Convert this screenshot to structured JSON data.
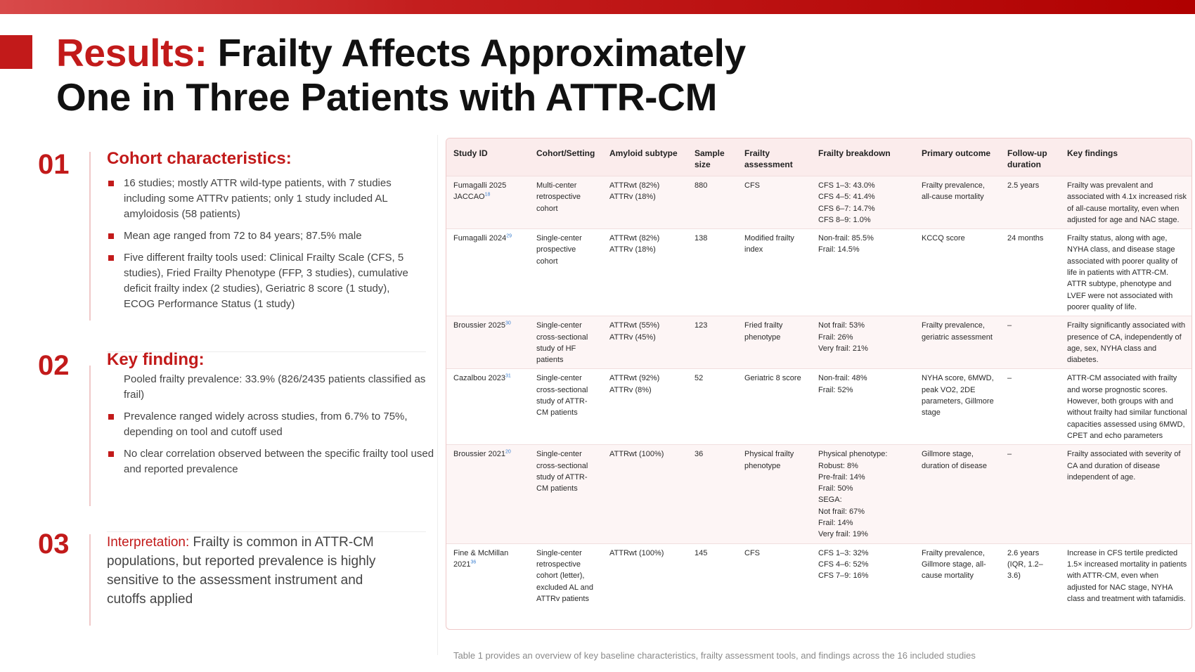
{
  "title": {
    "accent": "Results:",
    "line1_rest": " Frailty Affects Approximately",
    "line2": "One in Three Patients with ATTR-CM"
  },
  "sections": [
    {
      "number": "01",
      "heading": "Cohort characteristics:",
      "bullets": [
        "16 studies; mostly ATTR wild-type patients, with 7 studies including some ATTRv patients; only 1 study included AL amyloidosis (58 patients)",
        "Mean age ranged from 72 to 84 years; 87.5% male",
        "Five different frailty tools used: Clinical Frailty Scale (CFS, 5 studies), Fried Frailty Phenotype (FFP, 3 studies), cumulative deficit frailty index (2 studies), Geriatric 8 score (1 study), ECOG Performance Status (1 study)"
      ]
    },
    {
      "number": "02",
      "heading": "Key finding:",
      "lead": "Pooled frailty prevalence: 33.9% (826/2435 patients classified as frail)",
      "bullets": [
        "Prevalence ranged widely across studies, from 6.7% to 75%, depending on tool and cutoff used",
        "No clear correlation observed between the specific frailty tool used and reported prevalence"
      ]
    },
    {
      "number": "03",
      "label": "Interpretation:",
      "text": " Frailty is common in ATTR-CM populations, but reported prevalence is highly sensitive to the assessment instrument and cutoffs applied"
    }
  ],
  "table": {
    "headers": [
      "Study ID",
      "Cohort/Setting",
      "Amyloid subtype",
      "Sample size",
      "Frailty assessment",
      "Frailty breakdown",
      "Primary outcome",
      "Follow-up duration",
      "Key findings"
    ],
    "rows": [
      {
        "study": "Fumagalli 2025 JACCAO",
        "ref": "18",
        "cohort": "Multi-center retrospective cohort",
        "subtype": "ATTRwt (82%)\nATTRv (18%)",
        "size": "880",
        "assessment": "CFS",
        "breakdown": "CFS 1–3: 43.0%\nCFS 4–5: 41.4%\nCFS 6–7: 14.7%\nCFS 8–9: 1.0%",
        "outcome": "Frailty prevalence, all-cause mortality",
        "followup": "2.5 years",
        "findings": "Frailty was prevalent and associated with 4.1x increased risk of all-cause mortality, even when adjusted for age and NAC stage."
      },
      {
        "study": "Fumagalli 2024",
        "ref": "29",
        "cohort": "Single-center prospective cohort",
        "subtype": "ATTRwt (82%)\nATTRv (18%)",
        "size": "138",
        "assessment": "Modified frailty index",
        "breakdown": "Non-frail: 85.5%\nFrail: 14.5%",
        "outcome": "KCCQ score",
        "followup": "24 months",
        "findings": "Frailty status, along with age, NYHA class, and disease stage associated with poorer quality of life in patients with ATTR-CM. ATTR subtype, phenotype and LVEF were not associated with poorer quality of life."
      },
      {
        "study": "Broussier 2025",
        "ref": "30",
        "cohort": "Single-center cross-sectional study of HF patients",
        "subtype": "ATTRwt (55%)\nATTRv (45%)",
        "size": "123",
        "assessment": "Fried frailty phenotype",
        "breakdown": "Not frail: 53%\nFrail: 26%\nVery frail: 21%",
        "outcome": "Frailty prevalence, geriatric assessment",
        "followup": "–",
        "findings": "Frailty significantly associated with presence of CA, independently of age, sex, NYHA class and diabetes."
      },
      {
        "study": "Cazalbou 2023",
        "ref": "31",
        "cohort": "Single-center cross-sectional study of ATTR-CM patients",
        "subtype": "ATTRwt (92%)\nATTRv (8%)",
        "size": "52",
        "assessment": "Geriatric 8 score",
        "breakdown": "Non-frail: 48%\nFrail: 52%",
        "outcome": "NYHA score, 6MWD, peak VO2, 2DE parameters, Gillmore stage",
        "followup": "–",
        "findings": "ATTR-CM associated with frailty and worse prognostic scores. However, both groups with and without frailty had similar functional capacities assessed using 6MWD, CPET and echo parameters"
      },
      {
        "study": "Broussier 2021",
        "ref": "20",
        "cohort": "Single-center cross-sectional study of ATTR-CM patients",
        "subtype": "ATTRwt (100%)",
        "size": "36",
        "assessment": "Physical frailty phenotype",
        "breakdown": "Physical phenotype:\nRobust: 8%\nPre-frail: 14%\nFrail: 50%\nSEGA:\nNot frail: 67%\nFrail: 14%\nVery frail: 19%",
        "outcome": "Gillmore stage, duration of disease",
        "followup": "–",
        "findings": "Frailty associated with severity of CA and duration of disease independent of age."
      },
      {
        "study": "Fine & McMillan 2021",
        "ref": "36",
        "cohort": "Single-center retrospective cohort (letter), excluded AL and ATTRv patients",
        "subtype": "ATTRwt (100%)",
        "size": "145",
        "assessment": "CFS",
        "breakdown": "CFS 1–3: 32%\nCFS 4–6: 52%\nCFS 7–9: 16%",
        "outcome": "Frailty prevalence, Gillmore stage, all-cause mortality",
        "followup": "2.6 years (IQR, 1.2–3.6)",
        "findings": "Increase in CFS tertile predicted 1.5× increased mortality in patients with ATTR-CM, even when adjusted for NAC stage, NYHA class and treatment with tafamidis."
      }
    ]
  },
  "caption": "Table 1 provides an overview of key baseline characteristics, frailty assessment tools, and findings across the 16 included studies",
  "colors": {
    "accent": "#c21a1a",
    "header_bg": "#fbecec",
    "row_alt": "#fdf5f5"
  }
}
